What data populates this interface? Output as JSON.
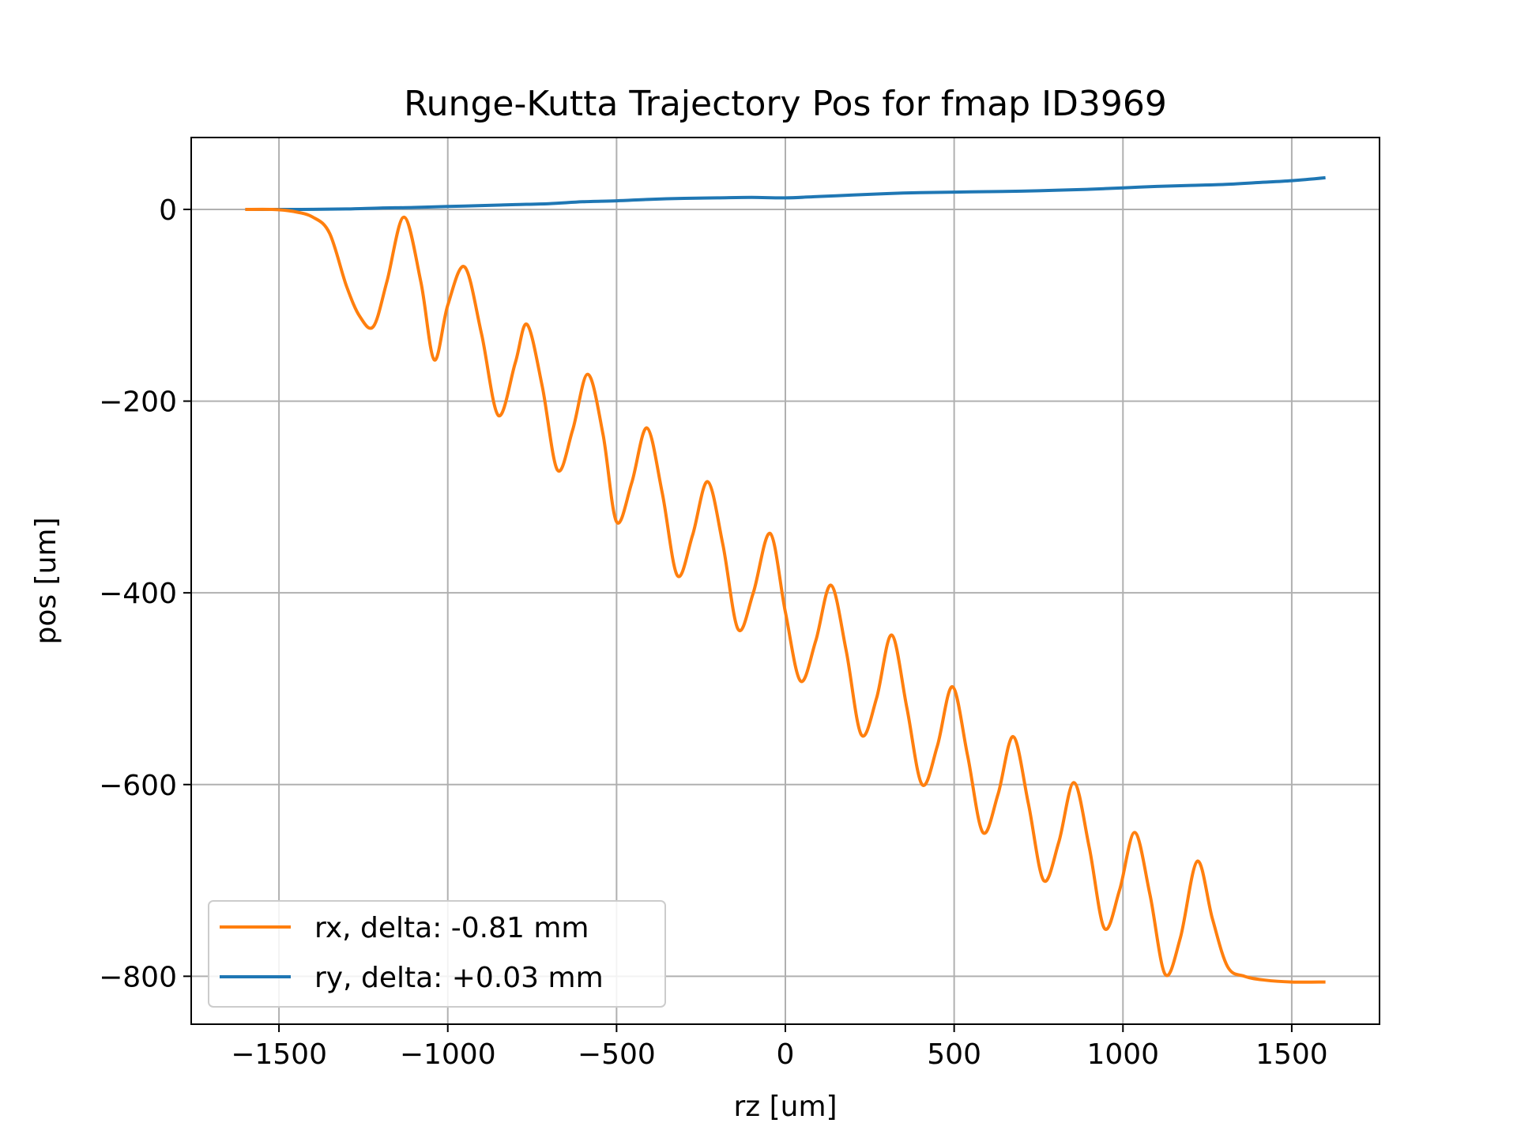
{
  "chart_data": {
    "type": "line",
    "title": "Runge-Kutta Trajectory Pos for fmap ID3969",
    "xlabel": "rz [um]",
    "ylabel": "pos [um]",
    "xlim": [
      -1760,
      1760
    ],
    "ylim": [
      -850,
      75
    ],
    "xticks": [
      -1500,
      -1000,
      -500,
      0,
      500,
      1000,
      1500
    ],
    "xtick_labels": [
      "−1500",
      "−1000",
      "−500",
      "0",
      "500",
      "1000",
      "1500"
    ],
    "yticks": [
      0,
      -200,
      -400,
      -600,
      -800
    ],
    "ytick_labels": [
      "0",
      "−200",
      "−400",
      "−600",
      "−800"
    ],
    "grid": true,
    "legend_position": "lower-left",
    "series": [
      {
        "name": "rx, delta: -0.81 mm",
        "color": "#ff7f0e",
        "x": [
          -1600,
          -1520,
          -1460,
          -1400,
          -1350,
          -1300,
          -1260,
          -1220,
          -1180,
          -1130,
          -1080,
          -1040,
          -1000,
          -950,
          -900,
          -850,
          -800,
          -765,
          -720,
          -675,
          -630,
          -585,
          -540,
          -500,
          -455,
          -410,
          -365,
          -320,
          -275,
          -230,
          -185,
          -140,
          -95,
          -45,
          0,
          45,
          90,
          135,
          180,
          225,
          270,
          315,
          360,
          405,
          450,
          495,
          540,
          585,
          630,
          675,
          720,
          765,
          810,
          855,
          900,
          945,
          990,
          1035,
          1080,
          1125,
          1170,
          1220,
          1265,
          1310,
          1360,
          1420,
          1500,
          1600
        ],
        "y": [
          0,
          0,
          -2,
          -8,
          -25,
          -80,
          -112,
          -122,
          -75,
          -8,
          -75,
          -157,
          -100,
          -60,
          -130,
          -215,
          -160,
          -120,
          -185,
          -272,
          -230,
          -172,
          -235,
          -326,
          -285,
          -228,
          -295,
          -382,
          -340,
          -284,
          -350,
          -438,
          -400,
          -338,
          -420,
          -492,
          -450,
          -392,
          -460,
          -548,
          -510,
          -444,
          -520,
          -600,
          -560,
          -498,
          -570,
          -650,
          -610,
          -550,
          -620,
          -700,
          -660,
          -598,
          -665,
          -750,
          -710,
          -650,
          -715,
          -798,
          -760,
          -680,
          -740,
          -790,
          -800,
          -804,
          -806,
          -806
        ]
      },
      {
        "name": "ry, delta: +0.03 mm",
        "color": "#1f77b4",
        "x": [
          -1600,
          -1450,
          -1300,
          -1200,
          -1100,
          -1000,
          -900,
          -800,
          -700,
          -600,
          -500,
          -400,
          -300,
          -200,
          -100,
          0,
          100,
          200,
          300,
          400,
          500,
          600,
          700,
          800,
          900,
          1000,
          1100,
          1200,
          1300,
          1400,
          1500,
          1600
        ],
        "y": [
          0,
          0,
          0.5,
          1.5,
          2,
          3,
          4,
          5,
          6,
          8,
          9,
          10.5,
          11.5,
          12,
          12.5,
          12,
          13.5,
          15,
          16.5,
          17.5,
          18,
          18.5,
          19,
          20,
          21,
          22.5,
          24,
          25,
          26,
          28,
          30,
          33
        ]
      }
    ]
  }
}
